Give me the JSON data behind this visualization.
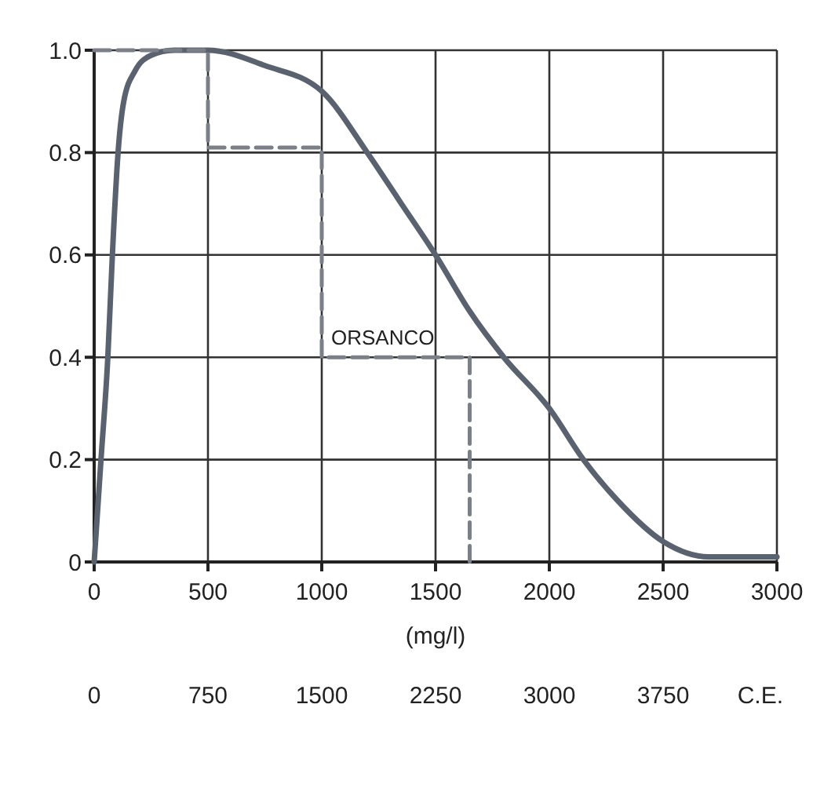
{
  "chart_data": {
    "type": "line",
    "xlabel": "(mg/l)",
    "x2label": "C.E.",
    "xlim": [
      0,
      3000
    ],
    "xticks": [
      0,
      500,
      1000,
      1500,
      2000,
      2500,
      3000
    ],
    "ylim": [
      0,
      1.0
    ],
    "yticks": [
      {
        "value": 0,
        "label": "0"
      },
      {
        "value": 0.2,
        "label": "0.2"
      },
      {
        "value": 0.4,
        "label": "0.4"
      },
      {
        "value": 0.6,
        "label": "0.6"
      },
      {
        "value": 0.8,
        "label": "0.8"
      },
      {
        "value": 1.0,
        "label": "1.0"
      }
    ],
    "x2lim": [
      0,
      4500
    ],
    "x2ticks": [
      0,
      750,
      1500,
      2250,
      3000,
      3750
    ],
    "grid": true,
    "series": [
      {
        "color": "#5a6270",
        "line_style": "solid",
        "x": [
          0,
          30,
          60,
          80,
          105,
          130,
          180,
          250,
          350,
          500,
          750,
          1000,
          1200,
          1350,
          1500,
          1650,
          1800,
          2000,
          2150,
          2300,
          2500,
          2700,
          3000
        ],
        "values": [
          0,
          0.2,
          0.4,
          0.6,
          0.8,
          0.9,
          0.96,
          0.99,
          1.0,
          1.0,
          0.97,
          0.92,
          0.8,
          0.7,
          0.6,
          0.49,
          0.4,
          0.3,
          0.2,
          0.12,
          0.04,
          0.01,
          0.01
        ]
      },
      {
        "color": "#7a7f88",
        "line_style": "dashed",
        "x": [
          0,
          500,
          500,
          1000,
          1000,
          1650,
          1650
        ],
        "values": [
          1.0,
          1.0,
          0.81,
          0.81,
          0.4,
          0.4,
          0
        ]
      }
    ],
    "annotations": [
      {
        "text": "ORSANCO",
        "x": 1000,
        "y": 0.4
      }
    ]
  }
}
